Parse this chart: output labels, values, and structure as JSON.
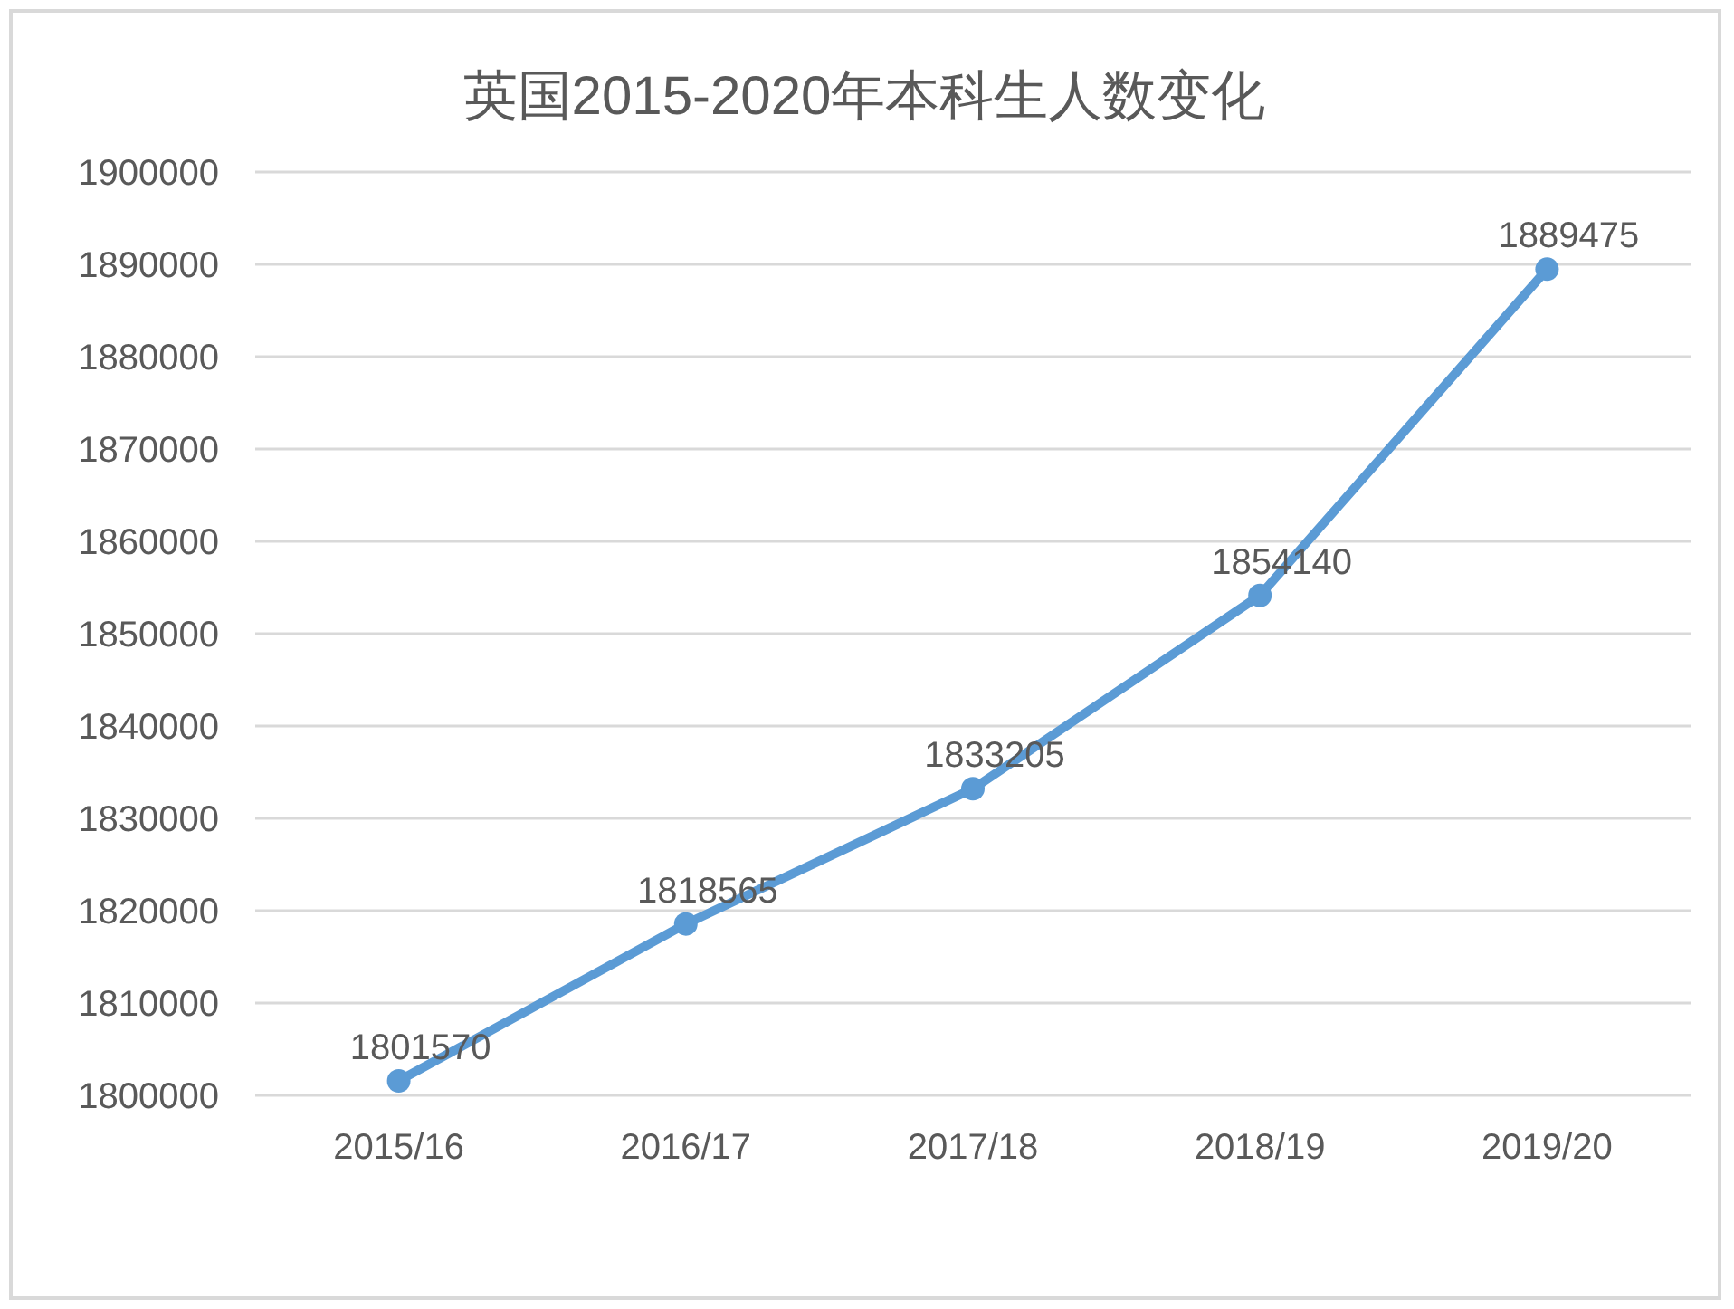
{
  "chart_data": {
    "type": "line",
    "title": "英国2015-2020年本科生人数变化",
    "categories": [
      "2015/16",
      "2016/17",
      "2017/18",
      "2018/19",
      "2019/20"
    ],
    "values": [
      1801570,
      1818565,
      1833205,
      1854140,
      1889475
    ],
    "color": "#5b9bd5",
    "ylim": [
      1800000,
      1900000
    ],
    "yticks": [
      1800000,
      1810000,
      1820000,
      1830000,
      1840000,
      1850000,
      1860000,
      1870000,
      1880000,
      1890000,
      1900000
    ],
    "grid": "y",
    "marker": "circle",
    "data_labels": true
  }
}
